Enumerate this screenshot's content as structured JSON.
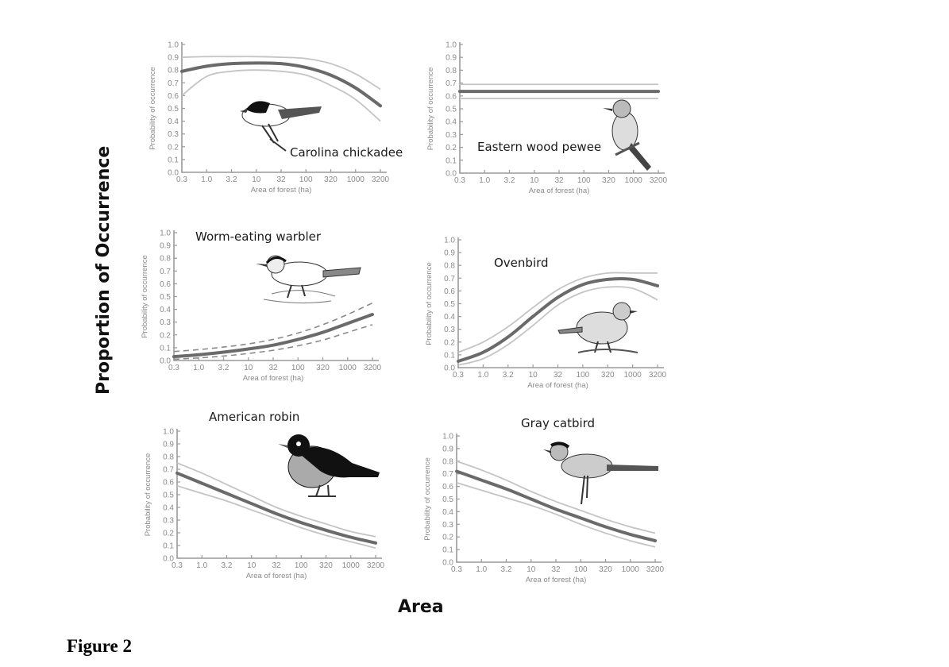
{
  "figure": {
    "label": "Figure 2",
    "global_ylabel": "Proportion of Occurrence",
    "global_xlabel": "Area"
  },
  "axes_common": {
    "y_ticks": [
      "0.0",
      "0.1",
      "0.2",
      "0.3",
      "0.4",
      "0.5",
      "0.6",
      "0.7",
      "0.8",
      "0.9",
      "1.0"
    ],
    "x_ticks": [
      "0.3",
      "1.0",
      "3.2",
      "10",
      "32",
      "100",
      "320",
      "1000",
      "3200"
    ],
    "ylabel": "Probability of occurrence",
    "xlabel": "Area of forest (ha)"
  },
  "colors": {
    "mean_line": "#6a6a6a",
    "ci_line": "#c4c4c4",
    "axis": "#9a9a9a",
    "tick_text": "#8a8a8a"
  },
  "chart_data": [
    {
      "type": "line",
      "title": "Carolina chickadee",
      "xlabel": "Area of forest (ha)",
      "ylabel": "Probability of occurrence",
      "x_scale": "log",
      "x": [
        0.3,
        1.0,
        3.2,
        10,
        32,
        100,
        320,
        1000,
        3200
      ],
      "ylim": [
        0,
        1.0
      ],
      "grid": false,
      "series": [
        {
          "name": "mean",
          "style": "solid-thick",
          "values": [
            0.79,
            0.83,
            0.85,
            0.855,
            0.85,
            0.82,
            0.76,
            0.66,
            0.52
          ]
        },
        {
          "name": "upper CI",
          "style": "solid-thin",
          "values": [
            0.9,
            0.905,
            0.905,
            0.905,
            0.9,
            0.89,
            0.85,
            0.77,
            0.65
          ]
        },
        {
          "name": "lower CI",
          "style": "solid-thin",
          "values": [
            0.6,
            0.75,
            0.79,
            0.8,
            0.79,
            0.76,
            0.68,
            0.57,
            0.4
          ]
        }
      ]
    },
    {
      "type": "line",
      "title": "Eastern wood pewee",
      "xlabel": "Area of forest (ha)",
      "ylabel": "Probability of occurrence",
      "x_scale": "log",
      "x": [
        0.3,
        1.0,
        3.2,
        10,
        32,
        100,
        320,
        1000,
        3200
      ],
      "ylim": [
        0,
        1.0
      ],
      "grid": false,
      "series": [
        {
          "name": "mean",
          "style": "solid-thick",
          "values": [
            0.635,
            0.635,
            0.635,
            0.635,
            0.635,
            0.635,
            0.635,
            0.635,
            0.635
          ]
        },
        {
          "name": "upper CI",
          "style": "solid-thin",
          "values": [
            0.69,
            0.69,
            0.69,
            0.69,
            0.69,
            0.69,
            0.69,
            0.69,
            0.69
          ]
        },
        {
          "name": "lower CI",
          "style": "solid-thin",
          "values": [
            0.58,
            0.58,
            0.58,
            0.58,
            0.58,
            0.58,
            0.58,
            0.58,
            0.58
          ]
        }
      ]
    },
    {
      "type": "line",
      "title": "Worm-eating warbler",
      "xlabel": "Area of forest (ha)",
      "ylabel": "Probability of occurrence",
      "x_scale": "log",
      "x": [
        0.3,
        1.0,
        3.2,
        10,
        32,
        100,
        320,
        1000,
        3200
      ],
      "ylim": [
        0,
        1.0
      ],
      "grid": false,
      "series": [
        {
          "name": "mean",
          "style": "solid-thick",
          "values": [
            0.03,
            0.045,
            0.065,
            0.09,
            0.12,
            0.165,
            0.22,
            0.29,
            0.36
          ]
        },
        {
          "name": "upper CI",
          "style": "dashed",
          "values": [
            0.07,
            0.085,
            0.105,
            0.13,
            0.165,
            0.215,
            0.28,
            0.36,
            0.45
          ]
        },
        {
          "name": "lower CI",
          "style": "dashed",
          "values": [
            0.01,
            0.02,
            0.035,
            0.055,
            0.08,
            0.115,
            0.16,
            0.22,
            0.28
          ]
        }
      ]
    },
    {
      "type": "line",
      "title": "Ovenbird",
      "xlabel": "Area of forest (ha)",
      "ylabel": "Probability of occurrence",
      "x_scale": "log",
      "x": [
        0.3,
        1.0,
        3.2,
        10,
        32,
        100,
        320,
        1000,
        3200
      ],
      "ylim": [
        0,
        1.0
      ],
      "grid": false,
      "series": [
        {
          "name": "mean",
          "style": "solid-thick",
          "values": [
            0.05,
            0.12,
            0.24,
            0.4,
            0.55,
            0.65,
            0.69,
            0.69,
            0.64
          ]
        },
        {
          "name": "upper CI",
          "style": "solid-thin",
          "values": [
            0.12,
            0.2,
            0.32,
            0.47,
            0.61,
            0.7,
            0.74,
            0.74,
            0.74
          ]
        },
        {
          "name": "lower CI",
          "style": "solid-thin",
          "values": [
            0.02,
            0.07,
            0.18,
            0.33,
            0.49,
            0.59,
            0.63,
            0.62,
            0.53
          ]
        }
      ]
    },
    {
      "type": "line",
      "title": "American robin",
      "xlabel": "Area of forest (ha)",
      "ylabel": "Probability of occurrence",
      "x_scale": "log",
      "x": [
        0.3,
        1.0,
        3.2,
        10,
        32,
        100,
        320,
        1000,
        3200
      ],
      "ylim": [
        0,
        1.0
      ],
      "grid": false,
      "series": [
        {
          "name": "mean",
          "style": "solid-thick",
          "values": [
            0.67,
            0.59,
            0.51,
            0.43,
            0.35,
            0.28,
            0.22,
            0.165,
            0.12
          ]
        },
        {
          "name": "upper CI",
          "style": "solid-thin",
          "values": [
            0.75,
            0.67,
            0.58,
            0.49,
            0.4,
            0.33,
            0.27,
            0.21,
            0.17
          ]
        },
        {
          "name": "lower CI",
          "style": "solid-thin",
          "values": [
            0.57,
            0.51,
            0.45,
            0.38,
            0.31,
            0.24,
            0.18,
            0.13,
            0.08
          ]
        }
      ]
    },
    {
      "type": "line",
      "title": "Gray catbird",
      "xlabel": "Area of forest (ha)",
      "ylabel": "Probability of occurrence",
      "x_scale": "log",
      "x": [
        0.3,
        1.0,
        3.2,
        10,
        32,
        100,
        320,
        1000,
        3200
      ],
      "ylim": [
        0,
        1.0
      ],
      "grid": false,
      "series": [
        {
          "name": "mean",
          "style": "solid-thick",
          "values": [
            0.72,
            0.65,
            0.58,
            0.5,
            0.42,
            0.35,
            0.28,
            0.22,
            0.17
          ]
        },
        {
          "name": "upper CI",
          "style": "solid-thin",
          "values": [
            0.8,
            0.73,
            0.65,
            0.56,
            0.48,
            0.41,
            0.34,
            0.28,
            0.23
          ]
        },
        {
          "name": "lower CI",
          "style": "solid-thin",
          "values": [
            0.63,
            0.57,
            0.51,
            0.45,
            0.38,
            0.3,
            0.23,
            0.17,
            0.12
          ]
        }
      ]
    }
  ]
}
